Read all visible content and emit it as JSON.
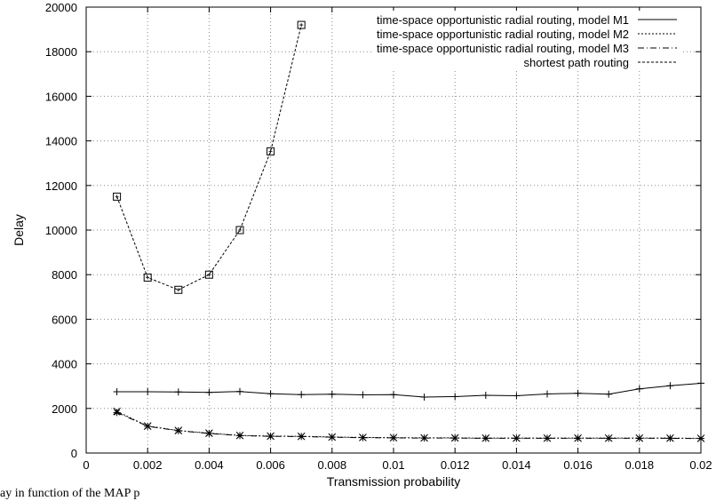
{
  "chart_data": {
    "type": "line",
    "title": "",
    "xlabel": "Transmission probability",
    "ylabel": "Delay",
    "xlim": [
      0,
      0.02
    ],
    "ylim": [
      0,
      20000
    ],
    "x_ticks": [
      "0",
      "0.002",
      "0.004",
      "0.006",
      "0.008",
      "0.01",
      "0.012",
      "0.014",
      "0.016",
      "0.018",
      "0.02"
    ],
    "y_ticks": [
      "0",
      "2000",
      "4000",
      "6000",
      "8000",
      "10000",
      "12000",
      "14000",
      "16000",
      "18000",
      "20000"
    ],
    "grid": true,
    "legend_position": "top-right",
    "series": [
      {
        "name": "time-space opportunistic radial routing, model M1",
        "line_style": "solid",
        "marker": "plus",
        "x": [
          0.001,
          0.002,
          0.003,
          0.004,
          0.005,
          0.006,
          0.007,
          0.008,
          0.009,
          0.01,
          0.011,
          0.012,
          0.013,
          0.014,
          0.015,
          0.016,
          0.017,
          0.018,
          0.019,
          0.02
        ],
        "y": [
          2750,
          2750,
          2740,
          2720,
          2760,
          2660,
          2620,
          2640,
          2610,
          2620,
          2510,
          2530,
          2590,
          2570,
          2650,
          2680,
          2640,
          2880,
          3020,
          3130
        ]
      },
      {
        "name": "time-space opportunistic radial routing, model M2",
        "line_style": "dotted",
        "marker": "cross",
        "x": [
          0.001,
          0.002,
          0.003,
          0.004,
          0.005,
          0.006,
          0.007,
          0.008,
          0.009,
          0.01,
          0.011,
          0.012,
          0.013,
          0.014,
          0.015,
          0.016,
          0.017,
          0.018,
          0.019,
          0.02
        ],
        "y": [
          1870,
          1210,
          1010,
          890,
          790,
          760,
          750,
          720,
          700,
          690,
          680,
          680,
          670,
          670,
          670,
          670,
          670,
          670,
          670,
          660
        ]
      },
      {
        "name": "time-space opportunistic radial routing, model M3",
        "line_style": "dashdot",
        "marker": "star",
        "x": [
          0.001,
          0.002,
          0.003,
          0.004,
          0.005,
          0.006,
          0.007,
          0.008,
          0.009,
          0.01,
          0.011,
          0.012,
          0.013,
          0.014,
          0.015,
          0.016,
          0.017,
          0.018,
          0.019,
          0.02
        ],
        "y": [
          1820,
          1200,
          1000,
          880,
          780,
          750,
          740,
          710,
          690,
          680,
          670,
          670,
          660,
          660,
          660,
          660,
          660,
          660,
          660,
          650
        ]
      },
      {
        "name": "shortest path routing",
        "line_style": "dashed",
        "marker": "square",
        "x": [
          0.001,
          0.002,
          0.003,
          0.004,
          0.005,
          0.006,
          0.007
        ],
        "y": [
          11500,
          7870,
          7320,
          8000,
          10000,
          13530,
          19200
        ]
      }
    ]
  },
  "caption": "ay in function of the MAP p"
}
